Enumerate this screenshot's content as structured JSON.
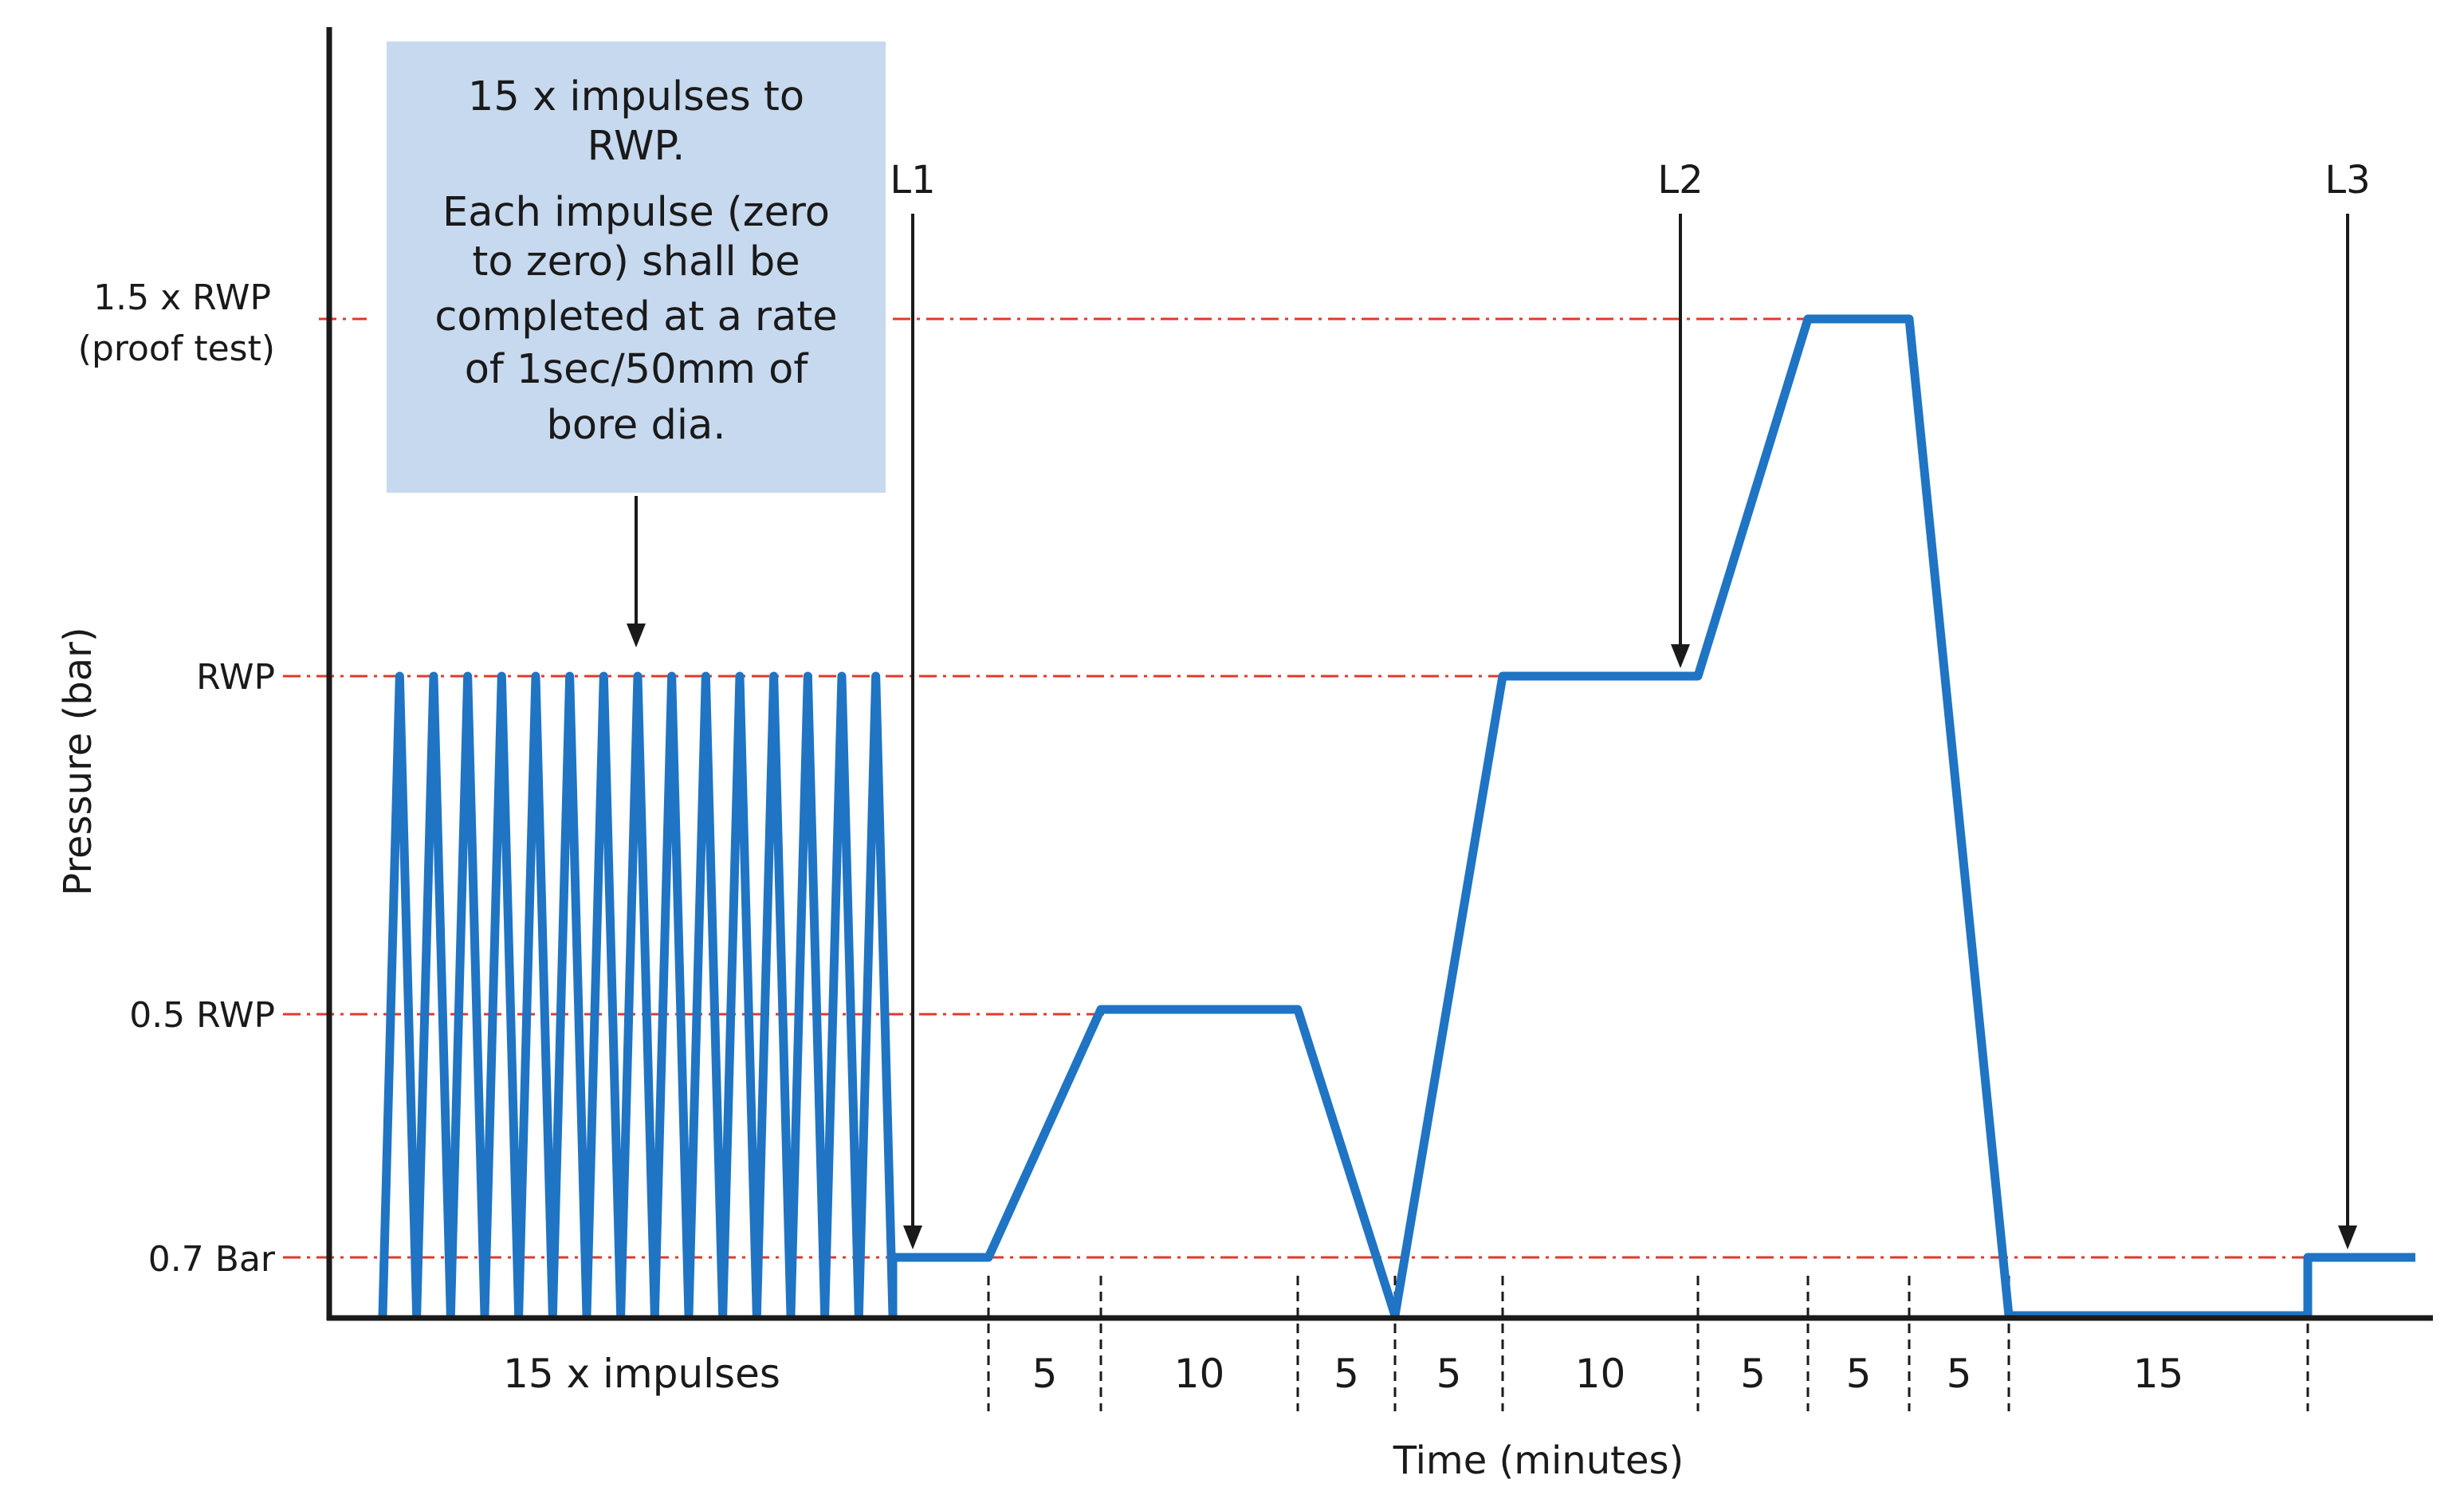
{
  "chart_data": {
    "type": "line",
    "title": "",
    "xlabel": "Time (minutes)",
    "ylabel": "Pressure (bar)",
    "y_levels": [
      {
        "key": "zero",
        "label": ""
      },
      {
        "key": "bar07",
        "label": "0.7 Bar"
      },
      {
        "key": "half",
        "label": "0.5 RWP"
      },
      {
        "key": "rwp",
        "label": "RWP"
      },
      {
        "key": "proof",
        "label": "1.5 x RWP",
        "label2": "(proof test)"
      }
    ],
    "segments": [
      {
        "label": "15 x impulses",
        "minutes": null
      },
      {
        "label": "",
        "minutes": null
      },
      {
        "label": "5",
        "minutes": 5
      },
      {
        "label": "10",
        "minutes": 10
      },
      {
        "label": "5",
        "minutes": 5
      },
      {
        "label": "5",
        "minutes": 5
      },
      {
        "label": "10",
        "minutes": 10
      },
      {
        "label": "5",
        "minutes": 5
      },
      {
        "label": "5",
        "minutes": 5
      },
      {
        "label": "5",
        "minutes": 5
      },
      {
        "label": "15",
        "minutes": 15
      }
    ],
    "impulses": {
      "count": 15,
      "level": "rwp"
    },
    "profile": [
      {
        "at": "end_impulses",
        "level": "zero"
      },
      {
        "at": "end_impulses",
        "level": "bar07"
      },
      {
        "at": "seg1_end",
        "level": "bar07"
      },
      {
        "at": "seg2_end",
        "level": "half"
      },
      {
        "at": "seg3_end",
        "level": "half"
      },
      {
        "at": "seg4_end",
        "level": "zero"
      },
      {
        "at": "seg5_end",
        "level": "rwp"
      },
      {
        "at": "seg6_end",
        "level": "rwp"
      },
      {
        "at": "seg7_end",
        "level": "proof"
      },
      {
        "at": "seg8_end",
        "level": "proof"
      },
      {
        "at": "seg9_end",
        "level": "zero"
      },
      {
        "at": "seg10_end",
        "level": "zero"
      },
      {
        "at": "seg10_end",
        "level": "bar07"
      },
      {
        "at": "chart_end",
        "level": "bar07"
      }
    ],
    "markers": [
      {
        "label": "L1",
        "at": "seg1_mid",
        "level": "bar07"
      },
      {
        "label": "L2",
        "at": "seg6_end",
        "level": "rwp"
      },
      {
        "label": "L3",
        "at": "seg10_end_plus",
        "level": "bar07"
      }
    ],
    "annotation": {
      "lines": [
        "15 x impulses to",
        "RWP.",
        "Each impulse (zero",
        "to zero) shall be",
        "completed at a rate",
        "of 1sec/50mm  of",
        "bore dia."
      ]
    },
    "colors": {
      "series": "#1f74c4",
      "reference": "#e0392b",
      "annotation_box": "#c7d9ef",
      "axis": "#1a1a1a"
    },
    "grid": false,
    "legend": "none"
  }
}
